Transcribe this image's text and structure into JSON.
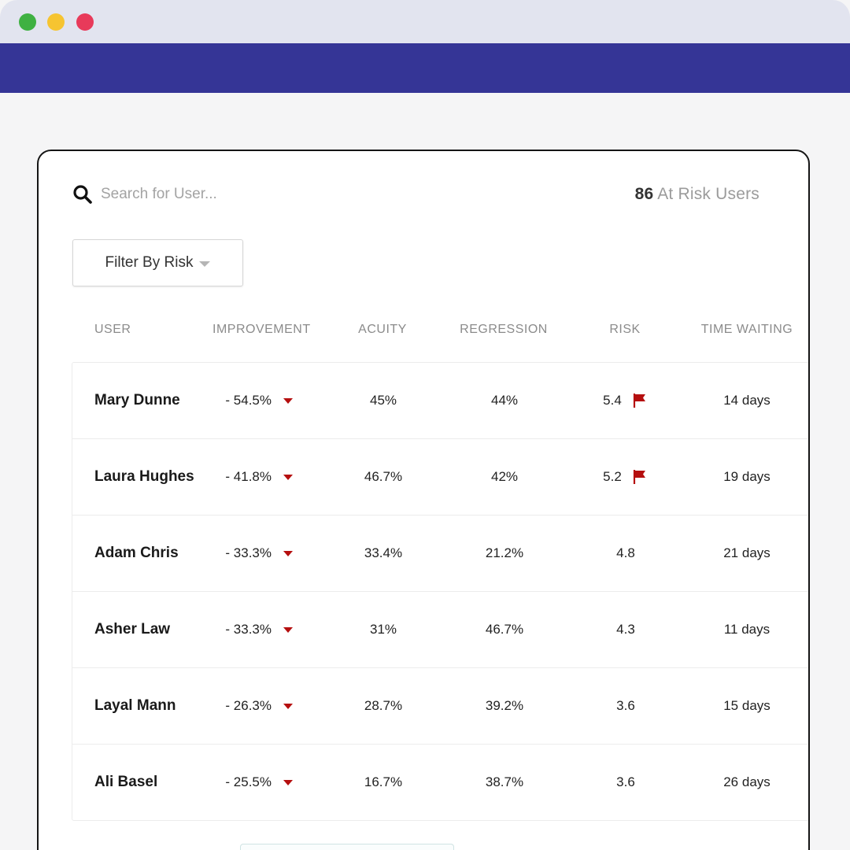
{
  "window": {
    "controls": [
      "close-dot",
      "minimize-dot",
      "maximize-dot"
    ],
    "colors": {
      "appbar": "#353596",
      "titlebar": "#e2e4ef",
      "flag": "#b50f0f"
    }
  },
  "search": {
    "placeholder": "Search for User...",
    "icon": "search-icon"
  },
  "summary": {
    "count": "86",
    "label": "At Risk Users"
  },
  "filter": {
    "label": "Filter By Risk"
  },
  "table": {
    "columns": {
      "user": "USER",
      "improvement": "IMPROVEMENT",
      "acuity": "ACUITY",
      "regression": "REGRESSION",
      "risk": "RISK",
      "time_waiting": "TIME WAITING"
    },
    "rows": [
      {
        "user": "Mary Dunne",
        "improvement": "- 54.5%",
        "acuity": "45%",
        "regression": "44%",
        "risk": "5.4",
        "flagged": true,
        "time_waiting": "14 days"
      },
      {
        "user": "Laura Hughes",
        "improvement": "- 41.8%",
        "acuity": "46.7%",
        "regression": "42%",
        "risk": "5.2",
        "flagged": true,
        "time_waiting": "19 days"
      },
      {
        "user": "Adam Chris",
        "improvement": "- 33.3%",
        "acuity": "33.4%",
        "regression": "21.2%",
        "risk": "4.8",
        "flagged": false,
        "time_waiting": "21 days"
      },
      {
        "user": "Asher Law",
        "improvement": "- 33.3%",
        "acuity": "31%",
        "regression": "46.7%",
        "risk": "4.3",
        "flagged": false,
        "time_waiting": "11 days"
      },
      {
        "user": "Layal Mann",
        "improvement": "- 26.3%",
        "acuity": "28.7%",
        "regression": "39.2%",
        "risk": "3.6",
        "flagged": false,
        "time_waiting": "15 days"
      },
      {
        "user": "Ali Basel",
        "improvement": "- 25.5%",
        "acuity": "16.7%",
        "regression": "38.7%",
        "risk": "3.6",
        "flagged": false,
        "time_waiting": "26 days"
      }
    ]
  }
}
